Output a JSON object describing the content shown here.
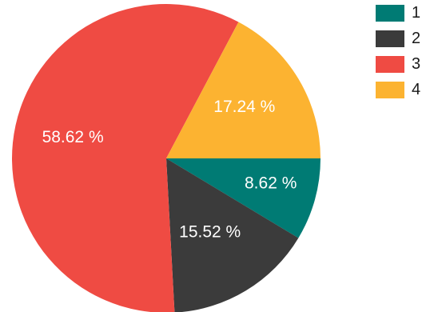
{
  "chart_data": {
    "type": "pie",
    "slices": [
      {
        "legend_label": "1",
        "value": 8.62,
        "label_text": "8.62 %",
        "color": "#007b74"
      },
      {
        "legend_label": "2",
        "value": 15.52,
        "label_text": "15.52 %",
        "color": "#3b3b3b"
      },
      {
        "legend_label": "3",
        "value": 58.62,
        "label_text": "58.62 %",
        "color": "#ef4b43"
      },
      {
        "legend_label": "4",
        "value": 17.24,
        "label_text": "17.24 %",
        "color": "#fcb331"
      }
    ],
    "start_direction": "right",
    "direction": "clockwise",
    "legend_position": "top-right"
  }
}
